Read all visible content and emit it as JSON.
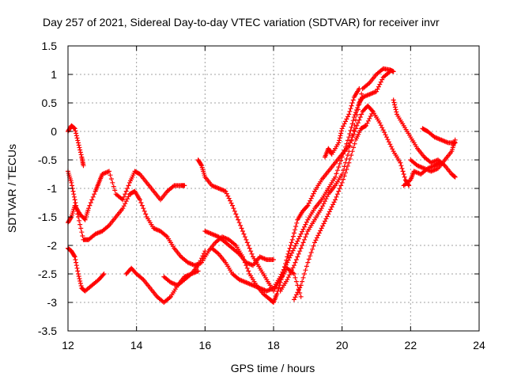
{
  "chart_data": {
    "type": "scatter",
    "title": "Day 257 of 2021, Sidereal Day-to-day VTEC variation (SDTVAR) for receiver invr",
    "xlabel": "GPS time / hours",
    "ylabel": "SDTVAR / TECUs",
    "xlim": [
      12,
      24
    ],
    "ylim": [
      -3.5,
      1.5
    ],
    "x_ticks": [
      12,
      14,
      16,
      18,
      20,
      22,
      24
    ],
    "x_tick_labels": [
      "12",
      "14",
      "16",
      "18",
      "20",
      "22",
      "24"
    ],
    "y_ticks": [
      -3.5,
      -3,
      -2.5,
      -2,
      -1.5,
      -1,
      -0.5,
      0,
      0.5,
      1,
      1.5
    ],
    "y_tick_labels": [
      "-3.5",
      "-3",
      "-2.5",
      "-2",
      "-1.5",
      "-1",
      "-0.5",
      "0",
      "0.5",
      "1",
      "1.5"
    ],
    "grid": true,
    "marker": "+",
    "color": "#ff0000",
    "series": [
      {
        "name": "track-1",
        "points": [
          [
            12.0,
            0.0
          ],
          [
            12.1,
            0.1
          ],
          [
            12.2,
            0.05
          ],
          [
            12.3,
            -0.2
          ],
          [
            12.4,
            -0.45
          ],
          [
            12.45,
            -0.6
          ]
        ]
      },
      {
        "name": "track-2",
        "points": [
          [
            12.0,
            -0.7
          ],
          [
            12.1,
            -0.9
          ],
          [
            12.2,
            -1.2
          ],
          [
            12.3,
            -1.5
          ],
          [
            12.45,
            -1.9
          ],
          [
            12.6,
            -1.9
          ],
          [
            12.8,
            -1.8
          ],
          [
            13.0,
            -1.75
          ],
          [
            13.2,
            -1.65
          ],
          [
            13.4,
            -1.5
          ],
          [
            13.6,
            -1.35
          ],
          [
            13.8,
            -1.1
          ],
          [
            13.95,
            -1.05
          ],
          [
            14.1,
            -1.2
          ],
          [
            14.3,
            -1.5
          ],
          [
            14.5,
            -1.7
          ],
          [
            14.7,
            -1.75
          ],
          [
            14.9,
            -1.85
          ],
          [
            15.1,
            -2.05
          ],
          [
            15.3,
            -2.2
          ],
          [
            15.5,
            -2.3
          ],
          [
            15.7,
            -2.35
          ],
          [
            15.9,
            -2.3
          ],
          [
            16.1,
            -2.1
          ],
          [
            16.3,
            -1.95
          ],
          [
            16.5,
            -1.85
          ],
          [
            16.7,
            -1.9
          ],
          [
            16.9,
            -2.0
          ],
          [
            17.1,
            -2.2
          ],
          [
            17.3,
            -2.5
          ],
          [
            17.5,
            -2.7
          ],
          [
            17.7,
            -2.85
          ],
          [
            17.9,
            -2.95
          ],
          [
            18.0,
            -3.0
          ],
          [
            18.1,
            -2.85
          ],
          [
            18.25,
            -2.55
          ],
          [
            18.4,
            -2.2
          ],
          [
            18.55,
            -1.9
          ],
          [
            18.7,
            -1.55
          ],
          [
            18.85,
            -1.4
          ],
          [
            19.0,
            -1.3
          ],
          [
            19.2,
            -1.05
          ],
          [
            19.4,
            -0.85
          ],
          [
            19.6,
            -0.7
          ],
          [
            19.8,
            -0.55
          ],
          [
            20.0,
            -0.4
          ],
          [
            20.2,
            -0.25
          ],
          [
            20.4,
            0.05
          ],
          [
            20.6,
            0.35
          ],
          [
            20.75,
            0.45
          ],
          [
            20.9,
            0.35
          ],
          [
            21.1,
            0.15
          ],
          [
            21.3,
            -0.1
          ],
          [
            21.5,
            -0.35
          ],
          [
            21.7,
            -0.55
          ],
          [
            21.85,
            -0.85
          ],
          [
            21.95,
            -0.95
          ]
        ]
      },
      {
        "name": "track-3",
        "points": [
          [
            12.0,
            -1.6
          ],
          [
            12.1,
            -1.5
          ],
          [
            12.2,
            -1.3
          ],
          [
            12.35,
            -1.45
          ],
          [
            12.5,
            -1.55
          ],
          [
            12.6,
            -1.35
          ],
          [
            12.8,
            -1.05
          ],
          [
            12.9,
            -0.9
          ],
          [
            13.0,
            -0.75
          ],
          [
            13.2,
            -0.7
          ],
          [
            13.4,
            -1.1
          ],
          [
            13.6,
            -1.2
          ],
          [
            13.8,
            -0.9
          ],
          [
            13.95,
            -0.7
          ],
          [
            14.1,
            -0.75
          ],
          [
            14.3,
            -0.9
          ],
          [
            14.5,
            -1.05
          ],
          [
            14.7,
            -1.2
          ],
          [
            14.9,
            -1.05
          ],
          [
            15.1,
            -0.95
          ],
          [
            15.3,
            -0.95
          ],
          [
            15.4,
            -0.95
          ]
        ]
      },
      {
        "name": "track-4",
        "points": [
          [
            12.0,
            -2.05
          ],
          [
            12.1,
            -2.1
          ],
          [
            12.2,
            -2.2
          ],
          [
            12.3,
            -2.5
          ],
          [
            12.4,
            -2.75
          ],
          [
            12.5,
            -2.8
          ],
          [
            12.7,
            -2.7
          ],
          [
            12.9,
            -2.6
          ],
          [
            13.05,
            -2.5
          ]
        ]
      },
      {
        "name": "track-5",
        "points": [
          [
            13.7,
            -2.5
          ],
          [
            13.85,
            -2.4
          ],
          [
            14.0,
            -2.5
          ],
          [
            14.2,
            -2.6
          ],
          [
            14.4,
            -2.75
          ],
          [
            14.6,
            -2.9
          ],
          [
            14.8,
            -3.0
          ],
          [
            15.0,
            -2.9
          ],
          [
            15.2,
            -2.7
          ],
          [
            15.4,
            -2.55
          ],
          [
            15.6,
            -2.5
          ],
          [
            15.8,
            -2.35
          ],
          [
            16.0,
            -2.1
          ]
        ]
      },
      {
        "name": "track-6",
        "points": [
          [
            14.8,
            -2.55
          ],
          [
            15.0,
            -2.65
          ],
          [
            15.2,
            -2.7
          ],
          [
            15.4,
            -2.6
          ],
          [
            15.6,
            -2.5
          ],
          [
            15.8,
            -2.45
          ]
        ]
      },
      {
        "name": "track-7",
        "points": [
          [
            15.8,
            -0.5
          ],
          [
            15.9,
            -0.6
          ],
          [
            16.0,
            -0.8
          ],
          [
            16.2,
            -0.95
          ],
          [
            16.4,
            -1.0
          ],
          [
            16.6,
            -1.05
          ],
          [
            16.8,
            -1.3
          ],
          [
            17.0,
            -1.6
          ],
          [
            17.2,
            -1.9
          ],
          [
            17.4,
            -2.2
          ],
          [
            17.6,
            -2.4
          ],
          [
            17.8,
            -2.6
          ],
          [
            18.0,
            -2.8
          ],
          [
            18.2,
            -2.6
          ],
          [
            18.4,
            -2.4
          ],
          [
            18.6,
            -2.5
          ],
          [
            18.8,
            -2.9
          ]
        ]
      },
      {
        "name": "track-8",
        "points": [
          [
            16.0,
            -1.75
          ],
          [
            16.2,
            -1.8
          ],
          [
            16.4,
            -1.85
          ],
          [
            16.6,
            -1.95
          ],
          [
            16.8,
            -2.05
          ],
          [
            17.0,
            -2.15
          ],
          [
            17.2,
            -2.3
          ],
          [
            17.4,
            -2.35
          ],
          [
            17.6,
            -2.2
          ],
          [
            17.8,
            -2.25
          ],
          [
            18.0,
            -2.25
          ]
        ]
      },
      {
        "name": "track-9",
        "points": [
          [
            16.2,
            -2.05
          ],
          [
            16.4,
            -2.15
          ],
          [
            16.6,
            -2.3
          ],
          [
            16.8,
            -2.5
          ],
          [
            17.0,
            -2.6
          ],
          [
            17.2,
            -2.65
          ],
          [
            17.4,
            -2.7
          ],
          [
            17.6,
            -2.75
          ],
          [
            17.8,
            -2.8
          ],
          [
            18.0,
            -2.75
          ],
          [
            18.2,
            -2.55
          ],
          [
            18.4,
            -2.3
          ],
          [
            18.6,
            -2.05
          ],
          [
            18.8,
            -1.8
          ],
          [
            19.0,
            -1.55
          ],
          [
            19.2,
            -1.35
          ],
          [
            19.4,
            -1.2
          ],
          [
            19.6,
            -1.0
          ],
          [
            19.8,
            -0.8
          ],
          [
            20.0,
            -0.45
          ],
          [
            20.2,
            -0.1
          ],
          [
            20.35,
            0.25
          ],
          [
            20.5,
            0.5
          ],
          [
            20.6,
            0.6
          ],
          [
            20.8,
            0.65
          ],
          [
            21.0,
            0.7
          ],
          [
            21.2,
            0.95
          ],
          [
            21.4,
            1.05
          ]
        ]
      },
      {
        "name": "track-10",
        "points": [
          [
            18.2,
            -2.8
          ],
          [
            18.4,
            -2.6
          ],
          [
            18.6,
            -2.35
          ],
          [
            18.8,
            -2.05
          ],
          [
            19.0,
            -1.75
          ],
          [
            19.2,
            -1.55
          ],
          [
            19.4,
            -1.35
          ],
          [
            19.6,
            -1.1
          ],
          [
            19.8,
            -0.95
          ],
          [
            20.0,
            -0.75
          ],
          [
            20.2,
            -0.35
          ],
          [
            20.4,
            0.2
          ],
          [
            20.6,
            0.75
          ],
          [
            20.8,
            0.85
          ],
          [
            21.0,
            1.0
          ],
          [
            21.2,
            1.1
          ],
          [
            21.4,
            1.08
          ],
          [
            21.5,
            1.05
          ]
        ]
      },
      {
        "name": "track-11",
        "points": [
          [
            18.6,
            -2.95
          ],
          [
            18.8,
            -2.7
          ],
          [
            19.0,
            -2.3
          ],
          [
            19.2,
            -1.95
          ],
          [
            19.4,
            -1.7
          ],
          [
            19.6,
            -1.45
          ],
          [
            19.8,
            -1.2
          ],
          [
            20.0,
            -0.9
          ],
          [
            20.2,
            -0.55
          ],
          [
            20.4,
            -0.15
          ],
          [
            20.55,
            0.05
          ],
          [
            20.7,
            0.1
          ],
          [
            20.9,
            0.35
          ]
        ]
      },
      {
        "name": "track-12",
        "points": [
          [
            19.5,
            -0.45
          ],
          [
            19.6,
            -0.3
          ],
          [
            19.7,
            -0.4
          ],
          [
            19.9,
            -0.2
          ],
          [
            20.0,
            0.05
          ],
          [
            20.2,
            0.3
          ],
          [
            20.35,
            0.6
          ],
          [
            20.5,
            0.75
          ]
        ]
      },
      {
        "name": "track-13",
        "points": [
          [
            21.5,
            0.55
          ],
          [
            21.6,
            0.3
          ],
          [
            21.8,
            0.1
          ],
          [
            22.0,
            -0.1
          ],
          [
            22.2,
            -0.3
          ],
          [
            22.4,
            -0.45
          ],
          [
            22.6,
            -0.55
          ],
          [
            22.8,
            -0.5
          ],
          [
            23.0,
            -0.6
          ],
          [
            23.2,
            -0.75
          ],
          [
            23.3,
            -0.8
          ]
        ]
      },
      {
        "name": "track-14",
        "points": [
          [
            22.0,
            -0.5
          ],
          [
            22.2,
            -0.6
          ],
          [
            22.4,
            -0.65
          ],
          [
            22.6,
            -0.7
          ],
          [
            22.8,
            -0.65
          ],
          [
            23.0,
            -0.5
          ],
          [
            23.2,
            -0.35
          ],
          [
            23.3,
            -0.15
          ]
        ]
      },
      {
        "name": "track-15",
        "points": [
          [
            22.35,
            0.05
          ],
          [
            22.5,
            0.0
          ],
          [
            22.7,
            -0.1
          ],
          [
            22.9,
            -0.15
          ],
          [
            23.1,
            -0.2
          ],
          [
            23.3,
            -0.2
          ]
        ]
      },
      {
        "name": "track-16",
        "points": [
          [
            21.8,
            -0.95
          ],
          [
            22.0,
            -0.85
          ],
          [
            22.1,
            -0.7
          ],
          [
            22.3,
            -0.75
          ],
          [
            22.5,
            -0.65
          ],
          [
            22.7,
            -0.6
          ],
          [
            22.85,
            -0.55
          ]
        ]
      }
    ]
  }
}
